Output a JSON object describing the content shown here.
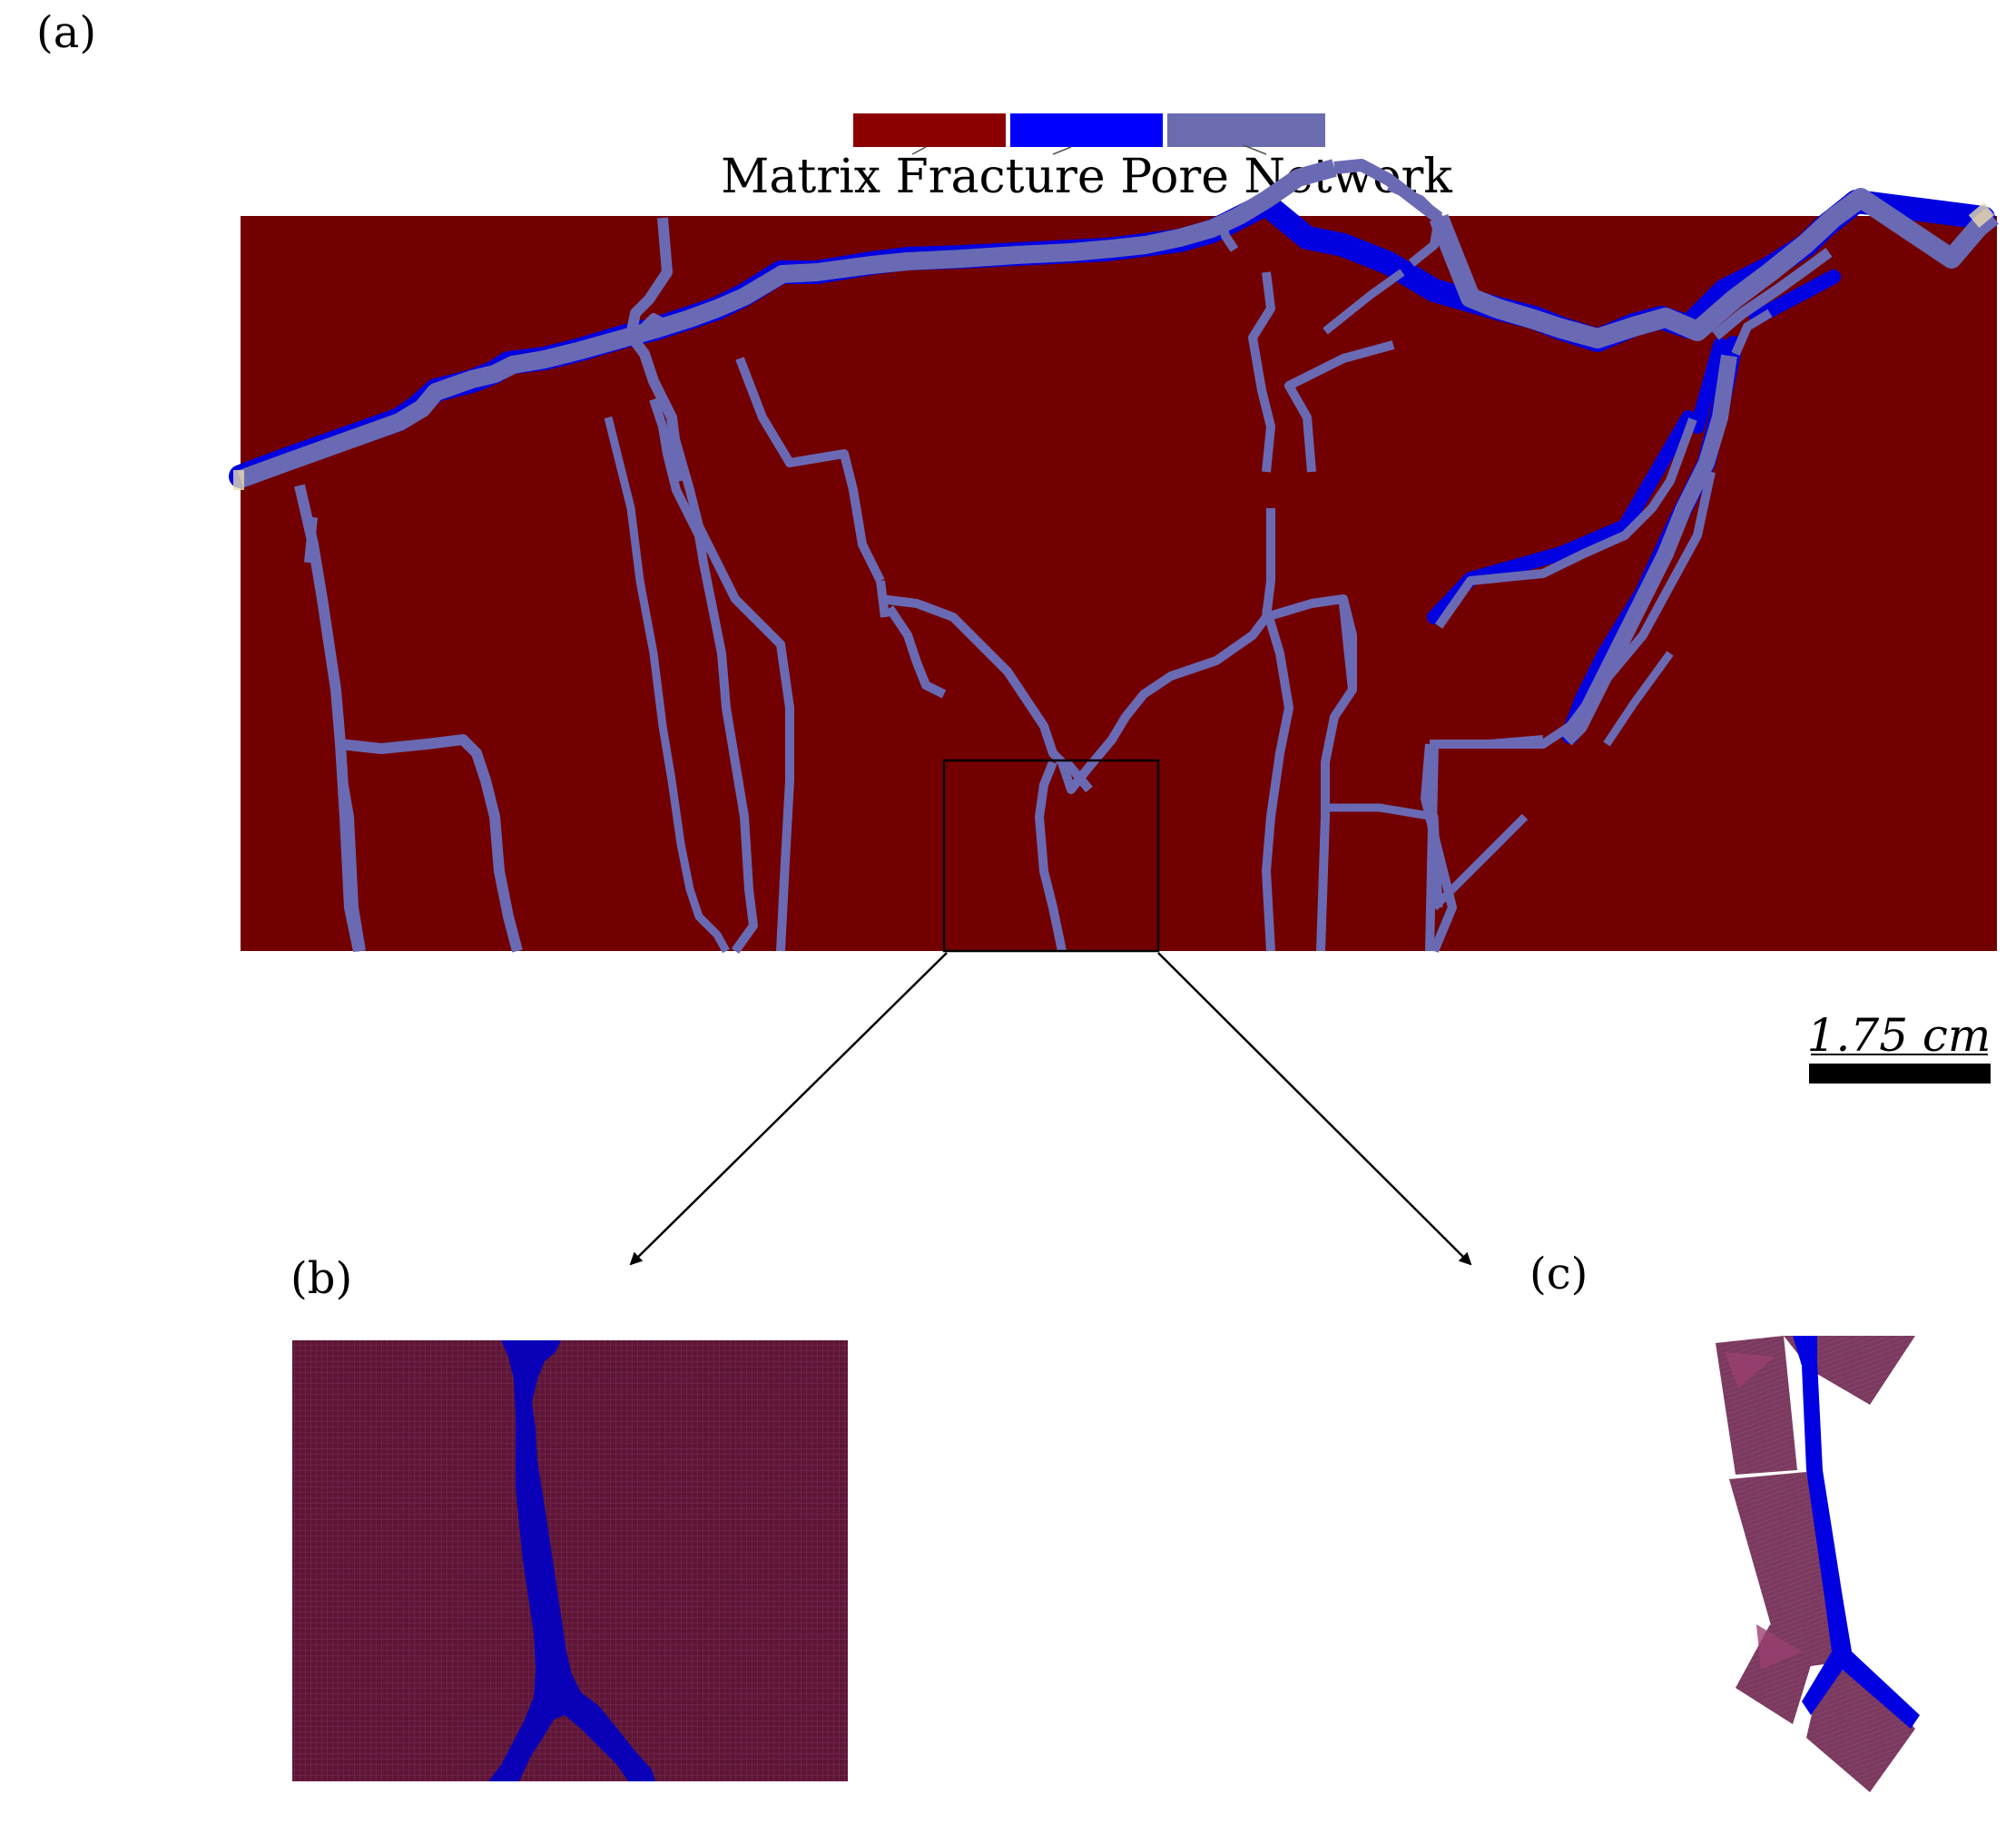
{
  "panels": {
    "a": "(a)",
    "b": "(b)",
    "c": "(c)"
  },
  "legend": {
    "items": [
      {
        "label": "Matrix",
        "color": "#8b0000"
      },
      {
        "label": "Fracture",
        "color": "#0000ff"
      },
      {
        "label": "Pore Network",
        "color": "#6b6bb0"
      }
    ],
    "caption": "Matrix Fracture Pore Network"
  },
  "scale_bar": {
    "label": "1.75 cm"
  },
  "colors": {
    "matrix_dark": "#730000",
    "fracture": "#0000e0",
    "pore_network": "#6a6ab4",
    "zoom_matrix": "#5e1636",
    "zoom_fracture": "#0a00b8",
    "pore_cell": "#7a3a60"
  }
}
